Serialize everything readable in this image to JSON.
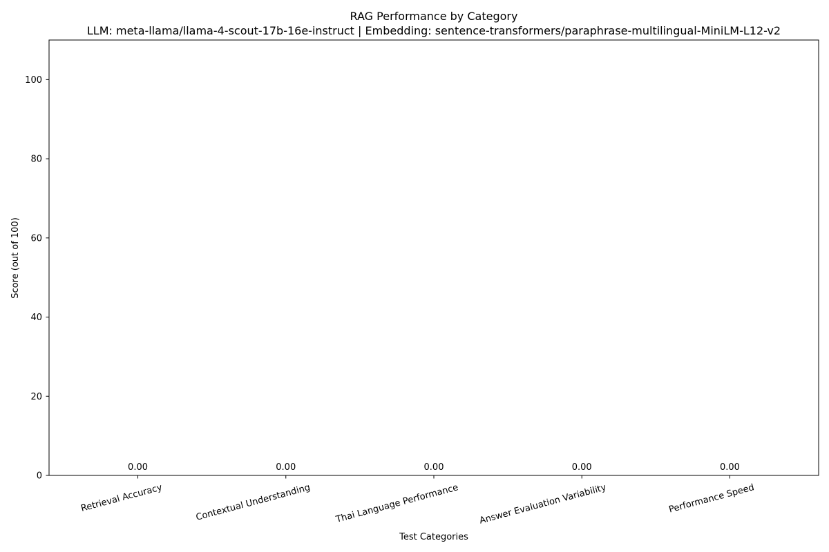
{
  "chart_data": {
    "type": "bar",
    "title": "RAG Performance by Category",
    "subtitle": "LLM: meta-llama/llama-4-scout-17b-16e-instruct | Embedding: sentence-transformers/paraphrase-multilingual-MiniLM-L12-v2",
    "xlabel": "Test Categories",
    "ylabel": "Score (out of 100)",
    "categories": [
      "Retrieval Accuracy",
      "Contextual Understanding",
      "Thai Language Performance",
      "Answer Evaluation Variability",
      "Performance Speed"
    ],
    "values": [
      0,
      0,
      0,
      0,
      0
    ],
    "value_labels": [
      "0.00",
      "0.00",
      "0.00",
      "0.00",
      "0.00"
    ],
    "ylim": [
      0,
      110
    ],
    "yticks": [
      0,
      20,
      40,
      60,
      80,
      100
    ],
    "grid": false,
    "legend": "none",
    "bar_color": "#1f77b4",
    "axis_color": "#000000"
  }
}
